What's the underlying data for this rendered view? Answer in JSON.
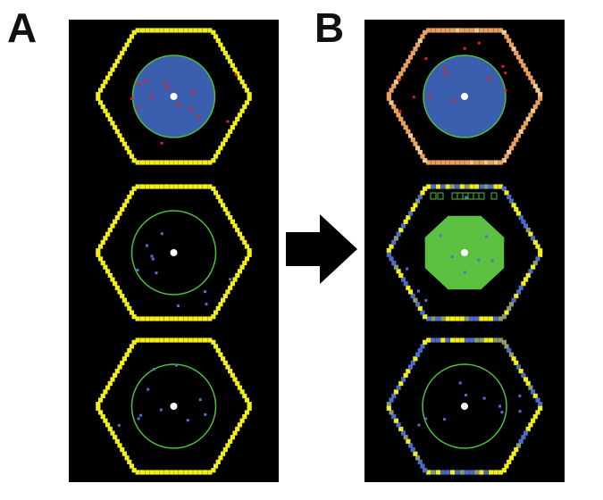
{
  "panels": [
    {
      "id": "A",
      "label": "A",
      "colors": {
        "background": "#000000",
        "hexagon": "#f2ee1a",
        "inner_circle": "#4cbf3c",
        "filled_disk": "#3b5fae",
        "center": "#ffffff",
        "red_agent": "#e02020",
        "blue_agent": "#5070d8"
      },
      "cells": [
        {
          "hexagon": "solid-yellow",
          "inner_disk": "blue-filled",
          "agents": "red",
          "center_dot": true
        },
        {
          "hexagon": "solid-yellow",
          "inner_disk": "empty",
          "agents": "blue",
          "center_dot": true
        },
        {
          "hexagon": "solid-yellow",
          "inner_disk": "empty",
          "agents": "blue",
          "center_dot": true
        }
      ]
    },
    {
      "id": "B",
      "label": "B",
      "colors": {
        "background": "#000000",
        "hexagon_top": "#e8a05a",
        "hexagon_mixed": "#c8b84a",
        "inner_circle": "#4cbf3c",
        "filled_disk_top": "#3b5fae",
        "filled_disk_middle": "#5cc040",
        "center": "#ffffff",
        "red_agent": "#e02020",
        "blue_agent": "#5070d8"
      },
      "cells": [
        {
          "hexagon": "orange",
          "inner_disk": "blue-filled",
          "agents": "red",
          "center_dot": true
        },
        {
          "hexagon": "yellow-blue-mixed",
          "inner_disk": "green-filled",
          "agents": "blue",
          "center_dot": true
        },
        {
          "hexagon": "yellow-blue-mixed",
          "inner_disk": "empty",
          "agents": "blue",
          "center_dot": true
        }
      ]
    }
  ],
  "arrow": {
    "direction": "right",
    "color": "#000000"
  }
}
